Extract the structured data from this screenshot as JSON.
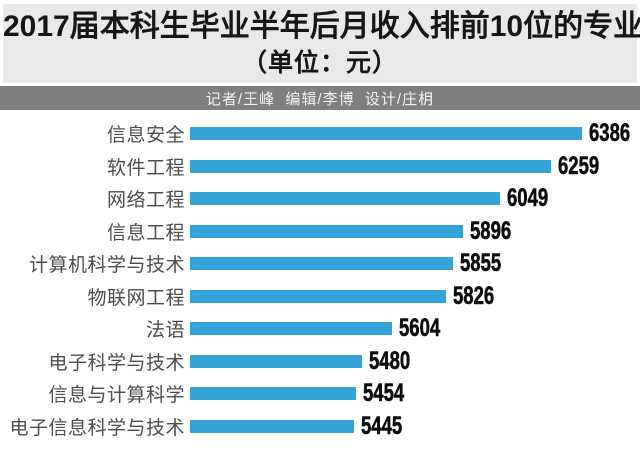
{
  "header": {
    "title": "2017届本科生毕业半年后月收入排前10位的专业",
    "subtitle": "（单位：元）",
    "bg_color": "#e9e9e9",
    "text_color": "#161616"
  },
  "credits": {
    "text": "记者/王峰  编辑/李博  设计/庄枂",
    "bg_color": "#7f7f81",
    "text_color": "#f4f4f4"
  },
  "chart_data": {
    "type": "bar",
    "orientation": "horizontal",
    "title": "2017届本科生毕业半年后月收入排前10位的专业",
    "subtitle": "（单位：元）",
    "unit": "元",
    "categories": [
      "信息安全",
      "软件工程",
      "网络工程",
      "信息工程",
      "计算机科学与技术",
      "物联网工程",
      "法语",
      "电子科学与技术",
      "信息与计算科学",
      "电子信息科学与技术"
    ],
    "values": [
      6386,
      6259,
      6049,
      5896,
      5855,
      5826,
      5604,
      5480,
      5454,
      5445
    ],
    "xlim": [
      4770,
      6400
    ],
    "grid": false,
    "legend": false,
    "value_labels_shown": true,
    "bar_color": "#34a3d7",
    "category_label_color": "#4d4d4d",
    "value_label_color": "#0d0d0d"
  }
}
